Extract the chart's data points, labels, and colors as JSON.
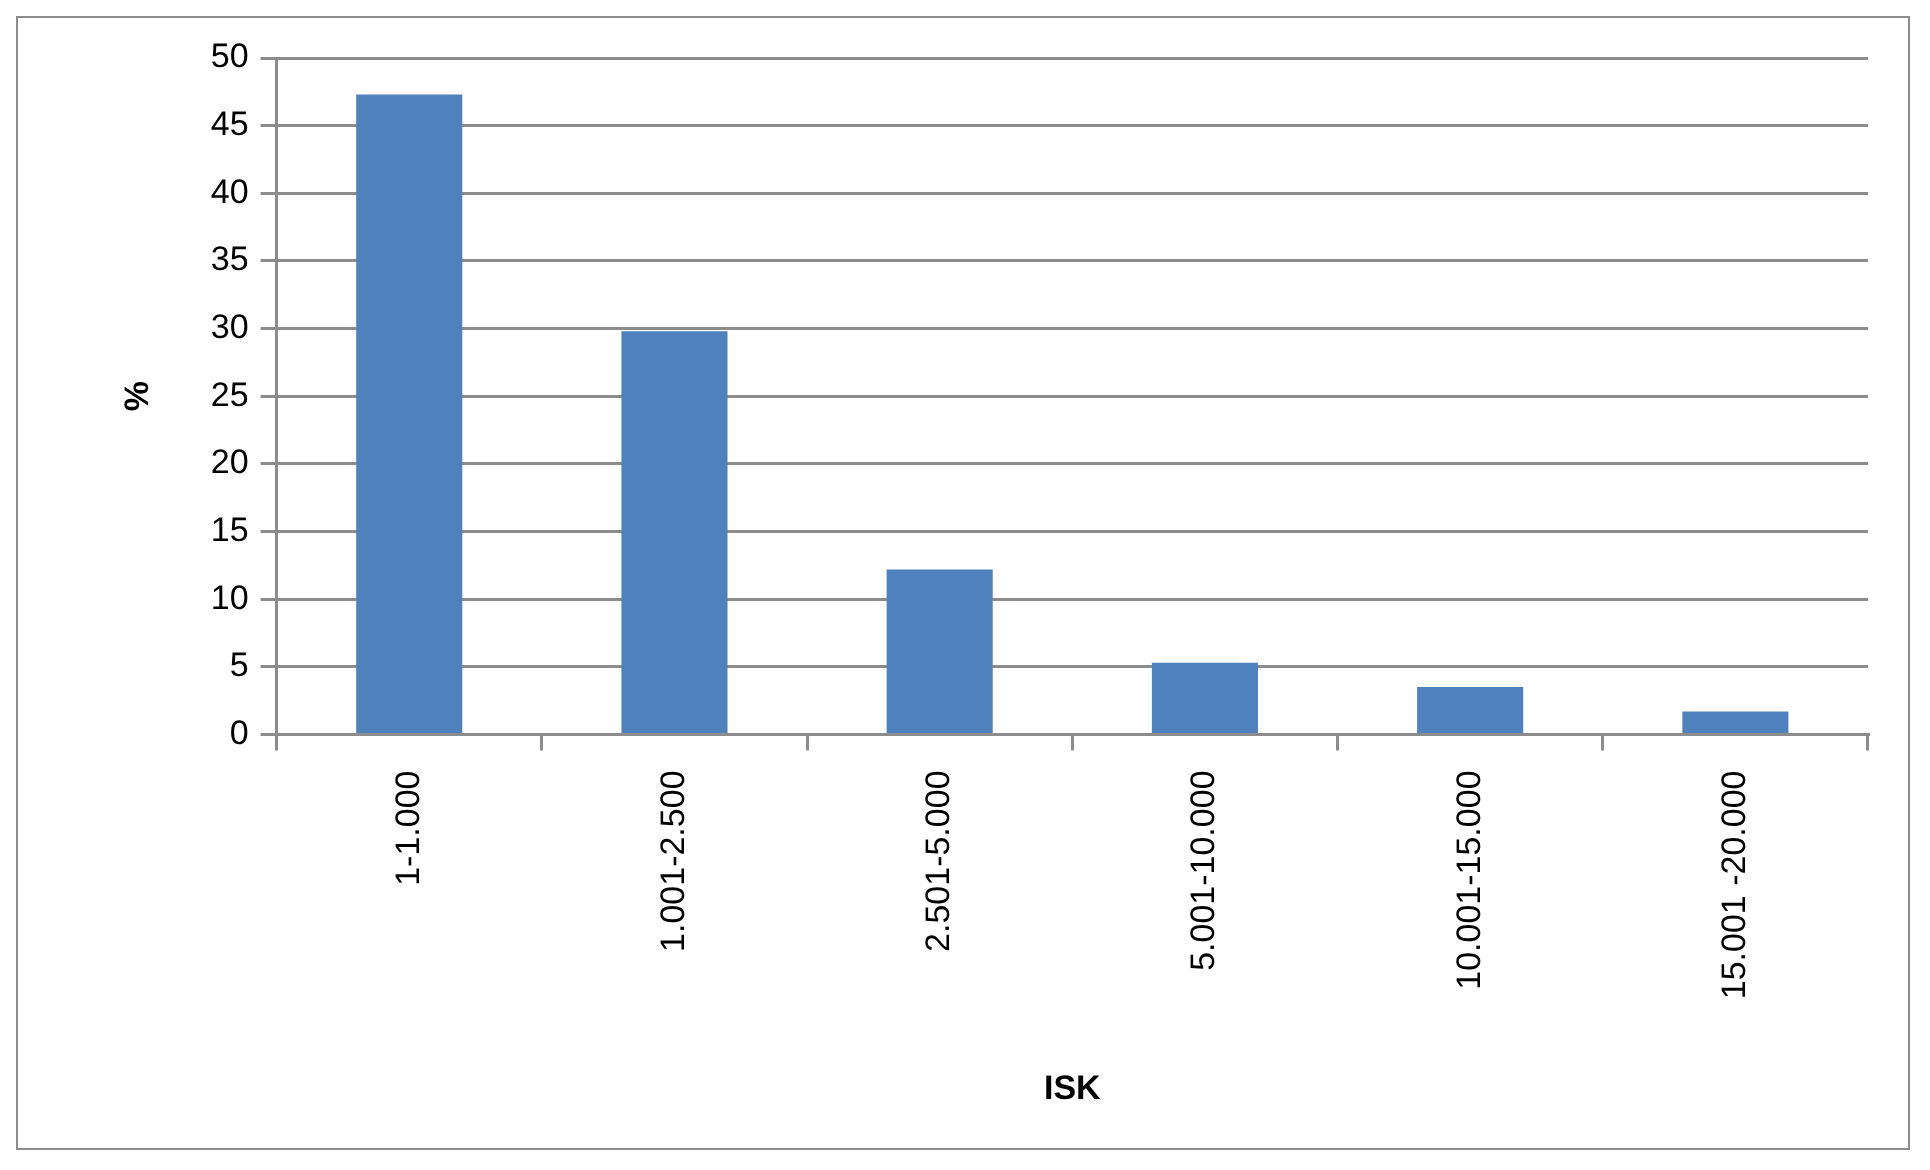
{
  "chart_data": {
    "type": "bar",
    "xlabel": "ISK",
    "ylabel": "%",
    "categories": [
      "1-1.000",
      "1.001-2.500",
      "2.501-5.000",
      "5.001-10.000",
      "10.001-15.000",
      "15.001 -20.000"
    ],
    "values": [
      47.3,
      29.8,
      12.2,
      5.3,
      3.5,
      1.7
    ],
    "color": "#4f81bd",
    "ylim": [
      0,
      50
    ],
    "yticks": [
      0,
      5,
      10,
      15,
      20,
      25,
      30,
      35,
      40,
      45,
      50
    ],
    "grid": "y",
    "legend": false
  }
}
